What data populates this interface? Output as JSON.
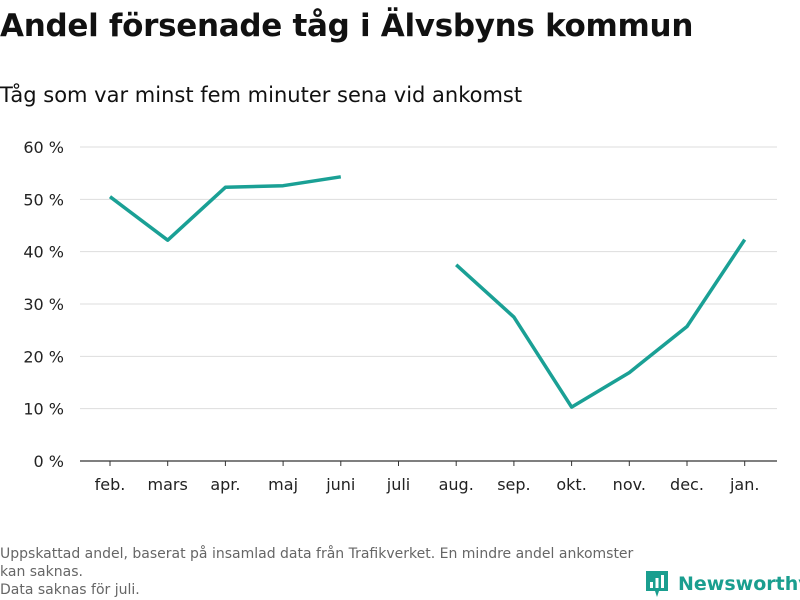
{
  "header": {
    "title": "Andel försenade tåg i Älvsbyns kommun",
    "subtitle": "Tåg som var minst fem minuter sena vid ankomst"
  },
  "footer": {
    "notes": [
      "Uppskattad andel, baserat på insamlad data från Trafikverket. En mindre andel ankomster kan saknas.",
      "Data saknas för juli."
    ],
    "brand": "Newsworthy"
  },
  "colors": {
    "line": "#1aa095",
    "grid": "#dddddd",
    "axis": "#333333",
    "brand": "#1a9e8f"
  },
  "chart_data": {
    "type": "line",
    "categories": [
      "feb.",
      "mars",
      "apr.",
      "maj",
      "juni",
      "juli",
      "aug.",
      "sep.",
      "okt.",
      "nov.",
      "dec.",
      "jan."
    ],
    "series": [
      {
        "values": [
          50.5,
          42.2,
          52.3,
          52.6,
          54.3,
          null,
          37.5,
          27.5,
          10.3,
          16.9,
          25.7,
          42.3
        ]
      }
    ],
    "ylim": [
      0,
      60
    ],
    "yticks": [
      0,
      10,
      20,
      30,
      40,
      50,
      60
    ],
    "ytick_labels": [
      "0 %",
      "10 %",
      "20 %",
      "30 %",
      "40 %",
      "50 %",
      "60 %"
    ],
    "grid": true,
    "legend": "none"
  }
}
